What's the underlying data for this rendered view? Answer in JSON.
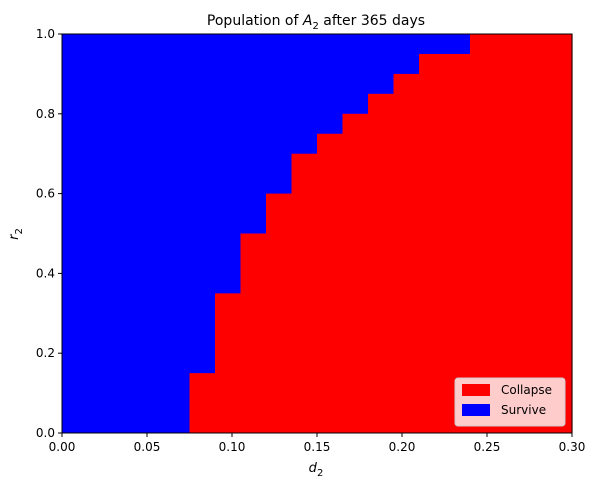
{
  "chart_data": {
    "type": "heatmap",
    "title_main": "Population of ",
    "title_var": "A",
    "title_sub": "2",
    "title_rest": " after 365 days",
    "xlabel_var": "d",
    "xlabel_sub": "2",
    "ylabel_var": "r",
    "ylabel_sub": "2",
    "xlim": [
      0,
      0.3
    ],
    "ylim": [
      0,
      1.0
    ],
    "xticks": [
      0.0,
      0.05,
      0.1,
      0.15,
      0.2,
      0.25,
      0.3
    ],
    "xtick_labels": [
      "0.00",
      "0.05",
      "0.10",
      "0.15",
      "0.20",
      "0.25",
      "0.30"
    ],
    "yticks": [
      0.0,
      0.2,
      0.4,
      0.6,
      0.8,
      1.0
    ],
    "ytick_labels": [
      "0.0",
      "0.2",
      "0.4",
      "0.6",
      "0.8",
      "1.0"
    ],
    "background_category": "Survive",
    "boundary_note": "Collapse region: for d2 >= d_start, r2 below r_top",
    "collapse_steps": [
      {
        "d_start": 0.075,
        "d_end": 0.09,
        "r_top": 0.15
      },
      {
        "d_start": 0.09,
        "d_end": 0.105,
        "r_top": 0.35
      },
      {
        "d_start": 0.105,
        "d_end": 0.12,
        "r_top": 0.5
      },
      {
        "d_start": 0.12,
        "d_end": 0.135,
        "r_top": 0.6
      },
      {
        "d_start": 0.135,
        "d_end": 0.15,
        "r_top": 0.7
      },
      {
        "d_start": 0.15,
        "d_end": 0.165,
        "r_top": 0.75
      },
      {
        "d_start": 0.165,
        "d_end": 0.18,
        "r_top": 0.8
      },
      {
        "d_start": 0.18,
        "d_end": 0.195,
        "r_top": 0.85
      },
      {
        "d_start": 0.195,
        "d_end": 0.21,
        "r_top": 0.9
      },
      {
        "d_start": 0.21,
        "d_end": 0.24,
        "r_top": 0.95
      },
      {
        "d_start": 0.24,
        "d_end": 0.3,
        "r_top": 1.0
      }
    ],
    "legend": {
      "placement": "lower-right",
      "entries": [
        {
          "label": "Collapse",
          "color": "#ff0000"
        },
        {
          "label": "Survive",
          "color": "#0000ff"
        }
      ]
    },
    "colors": {
      "collapse": "#ff0000",
      "survive": "#0000ff"
    },
    "grid": false
  }
}
